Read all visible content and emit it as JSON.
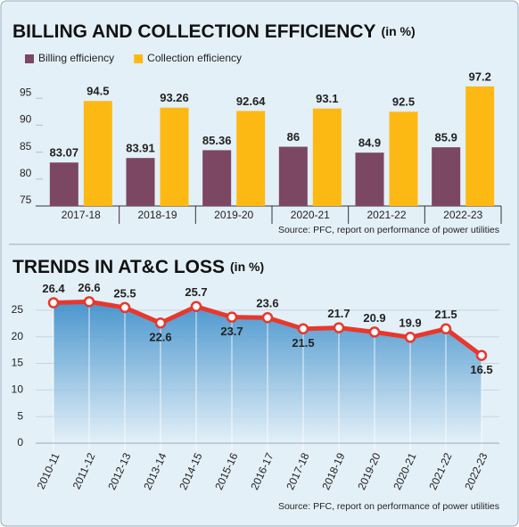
{
  "chart_data": [
    {
      "type": "bar",
      "title": "BILLING AND COLLECTION EFFICIENCY",
      "title_unit": "(in %)",
      "categories": [
        "2017-18",
        "2018-19",
        "2019-20",
        "2020-21",
        "2021-22",
        "2022-23"
      ],
      "series": [
        {
          "name": "Billing efficiency",
          "color": "#7b4763",
          "values": [
            83.07,
            83.91,
            85.36,
            86,
            84.9,
            85.9
          ]
        },
        {
          "name": "Collection efficiency",
          "color": "#fdb913",
          "values": [
            94.5,
            93.26,
            92.64,
            93.1,
            92.5,
            97.2
          ]
        }
      ],
      "ylim": [
        75,
        100
      ],
      "yticks": [
        75,
        80,
        85,
        90,
        95
      ],
      "source": "Source: PFC, report on performance of power utilities"
    },
    {
      "type": "line",
      "title": "TRENDS IN AT&C LOSS",
      "title_unit": "(in %)",
      "categories": [
        "2010-11",
        "2011-12",
        "2012-13",
        "2013-14",
        "2014-15",
        "2015-16",
        "2016-17",
        "2017-18",
        "2018-19",
        "2019-20",
        "2020-21",
        "2021-22",
        "2022-23"
      ],
      "values": [
        26.4,
        26.6,
        25.5,
        22.6,
        25.7,
        23.7,
        23.6,
        21.5,
        21.7,
        20.9,
        19.9,
        21.5,
        16.5
      ],
      "color": "#e8382c",
      "ylim": [
        0,
        28
      ],
      "yticks": [
        0,
        5,
        10,
        15,
        20,
        25
      ],
      "grid": true,
      "source": "Source: PFC, report on performance of power utilities"
    }
  ]
}
